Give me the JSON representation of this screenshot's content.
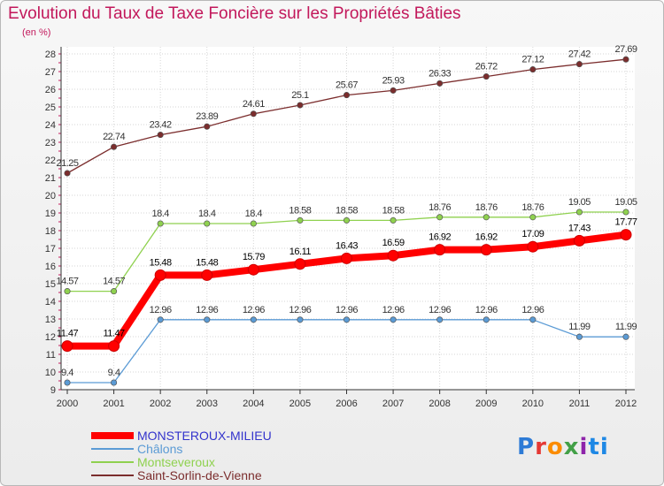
{
  "header": {
    "title": "Evolution du Taux de Taxe Foncière sur les Propriétés Bâties",
    "unit": "(en %)"
  },
  "logo": {
    "text": "Proxiti",
    "letters": [
      "P",
      "r",
      "o",
      "x",
      "i",
      "ti"
    ]
  },
  "chart_data": {
    "type": "line",
    "title": "Evolution du Taux de Taxe Foncière sur les Propriétés Bâties",
    "ylabel": "(en %)",
    "xlabel": "",
    "ylim": [
      9,
      28
    ],
    "yticks": [
      "9",
      "10",
      "11",
      "12",
      "13",
      "14",
      "15",
      "16",
      "17",
      "18",
      "19",
      "20",
      "21",
      "22",
      "23",
      "24",
      "25",
      "26",
      "27",
      "28"
    ],
    "x": [
      "2000",
      "2001",
      "2002",
      "2003",
      "2004",
      "2005",
      "2006",
      "2007",
      "2008",
      "2009",
      "2010",
      "2011",
      "2012"
    ],
    "legend_position": "bottom-left",
    "series": [
      {
        "name": "MONSTEROUX-MILIEU",
        "color": "#ff0000",
        "labelColor": "#000000",
        "values": [
          11.47,
          11.47,
          15.48,
          15.48,
          15.79,
          16.11,
          16.43,
          16.59,
          16.92,
          16.92,
          17.09,
          17.43,
          17.77
        ],
        "labels": [
          "11.47",
          "11.47",
          "15.48",
          "15.48",
          "15.79",
          "16.11",
          "16.43",
          "16.59",
          "16.92",
          "16.92",
          "17.09",
          "17.43",
          "17.77"
        ],
        "legendColor": "#3333cc"
      },
      {
        "name": "Châlons",
        "color": "#5b9bd5",
        "labelColor": "#333333",
        "values": [
          9.4,
          9.4,
          12.96,
          12.96,
          12.96,
          12.96,
          12.96,
          12.96,
          12.96,
          12.96,
          12.96,
          11.99,
          11.99
        ],
        "labels": [
          "9.4",
          "9.4",
          "12.96",
          "12.96",
          "12.96",
          "12.96",
          "12.96",
          "12.96",
          "12.96",
          "12.96",
          "12.96",
          "11.99",
          "11.99"
        ],
        "legendColor": "#5b9bd5"
      },
      {
        "name": "Montseveroux",
        "color": "#8fd14f",
        "labelColor": "#333333",
        "values": [
          14.57,
          14.57,
          18.4,
          18.4,
          18.4,
          18.58,
          18.58,
          18.58,
          18.76,
          18.76,
          18.76,
          19.05,
          19.05
        ],
        "labels": [
          "14.57",
          "14.57",
          "18.4",
          "18.4",
          "18.4",
          "18.58",
          "18.58",
          "18.58",
          "18.76",
          "18.76",
          "18.76",
          "19.05",
          "19.05"
        ],
        "legendColor": "#8fd14f"
      },
      {
        "name": "Saint-Sorlin-de-Vienne",
        "color": "#7b2d2d",
        "labelColor": "#333333",
        "values": [
          21.25,
          22.74,
          23.42,
          23.89,
          24.61,
          25.1,
          25.67,
          25.93,
          26.33,
          26.72,
          27.12,
          27.42,
          27.69
        ],
        "labels": [
          "21.25",
          "22.74",
          "23.42",
          "23.89",
          "24.61",
          "25.1",
          "25.67",
          "25.93",
          "26.33",
          "26.72",
          "27.12",
          "27.42",
          "27.69"
        ],
        "legendColor": "#7b2d2d"
      }
    ]
  }
}
